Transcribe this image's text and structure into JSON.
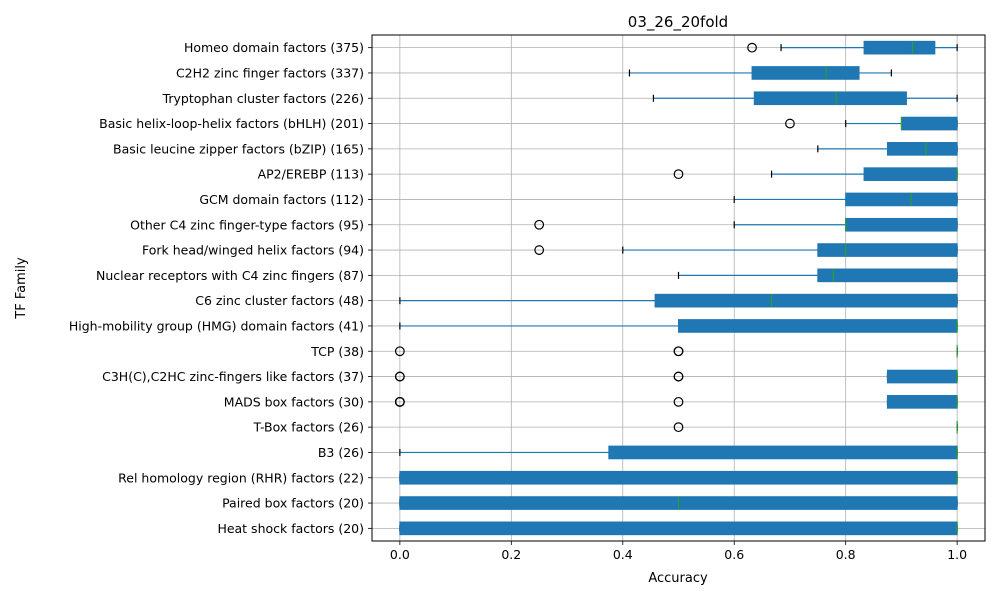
{
  "chart_data": {
    "type": "boxplot",
    "orientation": "horizontal",
    "title": "03_26_20fold",
    "xlabel": "Accuracy",
    "ylabel": "TF Family",
    "xlim": [
      -0.05,
      1.05
    ],
    "xticks": [
      0.0,
      0.2,
      0.4,
      0.6,
      0.8,
      1.0
    ],
    "xtick_labels": [
      "0.0",
      "0.2",
      "0.4",
      "0.6",
      "0.8",
      "1.0"
    ],
    "grid": true,
    "colors": {
      "box": "#1f77b4",
      "median": "#2ca02c",
      "grid": "#b0b0b0",
      "flier": "#000000"
    },
    "categories": [
      {
        "label": "Homeo domain factors (375)",
        "whislo": 0.684,
        "q1": 0.833,
        "med": 0.92,
        "q3": 0.96,
        "whishi": 1.0,
        "fliers": [
          0.632
        ]
      },
      {
        "label": "C2H2 zinc finger factors (337)",
        "whislo": 0.412,
        "q1": 0.632,
        "med": 0.765,
        "q3": 0.824,
        "whishi": 0.882,
        "fliers": []
      },
      {
        "label": "Tryptophan cluster factors (226)",
        "whislo": 0.455,
        "q1": 0.636,
        "med": 0.783,
        "q3": 0.909,
        "whishi": 1.0,
        "fliers": []
      },
      {
        "label": "Basic helix-loop-helix factors (bHLH) (201)",
        "whislo": 0.8,
        "q1": 0.9,
        "med": 0.9,
        "q3": 1.0,
        "whishi": 1.0,
        "fliers": [
          0.7
        ]
      },
      {
        "label": "Basic leucine zipper factors (bZIP) (165)",
        "whislo": 0.75,
        "q1": 0.875,
        "med": 0.944,
        "q3": 1.0,
        "whishi": 1.0,
        "fliers": []
      },
      {
        "label": "AP2/EREBP (113)",
        "whislo": 0.667,
        "q1": 0.833,
        "med": 1.0,
        "q3": 1.0,
        "whishi": 1.0,
        "fliers": [
          0.5
        ]
      },
      {
        "label": "GCM domain factors (112)",
        "whislo": 0.6,
        "q1": 0.8,
        "med": 0.917,
        "q3": 1.0,
        "whishi": 1.0,
        "fliers": []
      },
      {
        "label": "Other C4 zinc finger-type factors (95)",
        "whislo": 0.6,
        "q1": 0.8,
        "med": 0.8,
        "q3": 1.0,
        "whishi": 1.0,
        "fliers": [
          0.25
        ]
      },
      {
        "label": "Fork head/winged helix factors (94)",
        "whislo": 0.4,
        "q1": 0.75,
        "med": 0.8,
        "q3": 1.0,
        "whishi": 1.0,
        "fliers": [
          0.25
        ]
      },
      {
        "label": "Nuclear receptors with C4 zinc fingers (87)",
        "whislo": 0.5,
        "q1": 0.75,
        "med": 0.778,
        "q3": 1.0,
        "whishi": 1.0,
        "fliers": []
      },
      {
        "label": "C6 zinc cluster factors (48)",
        "whislo": 0.0,
        "q1": 0.458,
        "med": 0.667,
        "q3": 1.0,
        "whishi": 1.0,
        "fliers": []
      },
      {
        "label": "High-mobility group (HMG) domain factors (41)",
        "whislo": 0.0,
        "q1": 0.5,
        "med": 1.0,
        "q3": 1.0,
        "whishi": 1.0,
        "fliers": []
      },
      {
        "label": "TCP (38)",
        "whislo": 1.0,
        "q1": 1.0,
        "med": 1.0,
        "q3": 1.0,
        "whishi": 1.0,
        "fliers": [
          0.0,
          0.5,
          0.5
        ]
      },
      {
        "label": "C3H(C),C2HC zinc-fingers like factors (37)",
        "whislo": 0.875,
        "q1": 0.875,
        "med": 1.0,
        "q3": 1.0,
        "whishi": 1.0,
        "fliers": [
          0.0,
          0.0,
          0.5,
          0.5
        ]
      },
      {
        "label": "MADS box factors (30)",
        "whislo": 0.875,
        "q1": 0.875,
        "med": 1.0,
        "q3": 1.0,
        "whishi": 1.0,
        "fliers": [
          0.0,
          0.0,
          0.0,
          0.5
        ]
      },
      {
        "label": "T-Box factors (26)",
        "whislo": 1.0,
        "q1": 1.0,
        "med": 1.0,
        "q3": 1.0,
        "whishi": 1.0,
        "fliers": [
          0.5
        ]
      },
      {
        "label": "B3 (26)",
        "whislo": 0.0,
        "q1": 0.375,
        "med": 1.0,
        "q3": 1.0,
        "whishi": 1.0,
        "fliers": []
      },
      {
        "label": "Rel homology region (RHR) factors (22)",
        "whislo": 0.0,
        "q1": 0.0,
        "med": 1.0,
        "q3": 1.0,
        "whishi": 1.0,
        "fliers": []
      },
      {
        "label": "Paired box factors (20)",
        "whislo": 0.0,
        "q1": 0.0,
        "med": 0.5,
        "q3": 1.0,
        "whishi": 1.0,
        "fliers": []
      },
      {
        "label": "Heat shock factors (20)",
        "whislo": 0.0,
        "q1": 0.0,
        "med": 1.0,
        "q3": 1.0,
        "whishi": 1.0,
        "fliers": []
      }
    ]
  }
}
